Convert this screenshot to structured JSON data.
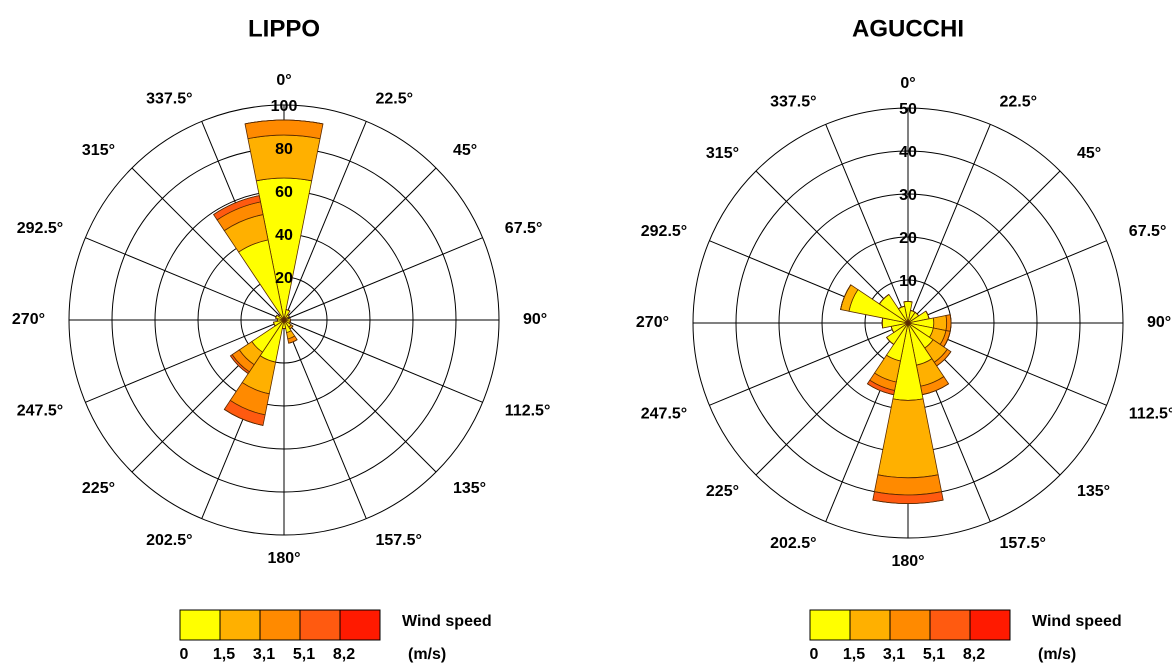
{
  "chart_data": [
    {
      "type": "windrose",
      "title": "LIPPO",
      "categories": [
        "0°",
        "22.5°",
        "45°",
        "67.5°",
        "90°",
        "112.5°",
        "135°",
        "157.5°",
        "180°",
        "202.5°",
        "225°",
        "247.5°",
        "270°",
        "292.5°",
        "315°",
        "337.5°"
      ],
      "rlim": [
        0,
        100
      ],
      "rticks": [
        20,
        40,
        60,
        80,
        100
      ],
      "series": [
        {
          "name": "0",
          "color": "#ffff00",
          "values": [
            66,
            5,
            3,
            2,
            3,
            3,
            4,
            6,
            4,
            20,
            18,
            5,
            3,
            4,
            3,
            38
          ]
        },
        {
          "name": "1,5",
          "color": "#ffb000",
          "values": [
            20,
            0,
            0,
            0,
            0,
            0,
            1,
            3,
            0,
            15,
            7,
            0,
            0,
            0,
            0,
            12
          ]
        },
        {
          "name": "3,1",
          "color": "#ff8a00",
          "values": [
            7,
            0,
            0,
            0,
            0,
            0,
            0,
            2,
            0,
            10,
            4,
            0,
            0,
            0,
            0,
            6
          ]
        },
        {
          "name": "5,1",
          "color": "#ff5a10",
          "values": [
            0,
            0,
            0,
            0,
            0,
            0,
            0,
            0,
            0,
            5,
            1,
            0,
            0,
            0,
            0,
            3
          ]
        },
        {
          "name": "8,2",
          "color": "#ff1a00",
          "values": [
            0,
            0,
            0,
            0,
            0,
            0,
            0,
            0,
            0,
            0,
            0,
            0,
            0,
            0,
            0,
            0
          ]
        }
      ],
      "legend_title": "Wind speed",
      "legend_unit": "(m/s)"
    },
    {
      "type": "windrose",
      "title": "AGUCCHI",
      "categories": [
        "0°",
        "22.5°",
        "45°",
        "67.5°",
        "90°",
        "112.5°",
        "135°",
        "157.5°",
        "180°",
        "202.5°",
        "225°",
        "247.5°",
        "270°",
        "292.5°",
        "315°",
        "337.5°"
      ],
      "rlim": [
        0,
        50
      ],
      "rticks": [
        10,
        20,
        30,
        40,
        50
      ],
      "series": [
        {
          "name": "0",
          "color": "#ffff00",
          "values": [
            5,
            3,
            3,
            5,
            6,
            6,
            7,
            10,
            18,
            9,
            6,
            4,
            6,
            14,
            8,
            4
          ]
        },
        {
          "name": "1,5",
          "color": "#ffb000",
          "values": [
            0,
            0,
            0,
            0,
            3,
            3,
            4,
            5,
            18,
            5,
            0,
            0,
            0,
            2,
            0,
            0
          ]
        },
        {
          "name": "3,1",
          "color": "#ff8a00",
          "values": [
            0,
            0,
            0,
            0,
            1,
            1,
            1,
            2,
            4,
            2,
            0,
            0,
            0,
            0,
            0,
            0
          ]
        },
        {
          "name": "5,1",
          "color": "#ff5a10",
          "values": [
            0,
            0,
            0,
            0,
            0,
            0,
            0,
            0,
            2,
            1,
            0,
            0,
            0,
            0,
            0,
            0
          ]
        },
        {
          "name": "8,2",
          "color": "#ff1a00",
          "values": [
            0,
            0,
            0,
            0,
            0,
            0,
            0,
            0,
            0,
            0,
            0,
            0,
            0,
            0,
            0,
            0
          ]
        }
      ],
      "legend_title": "Wind speed",
      "legend_unit": "(m/s)"
    }
  ]
}
